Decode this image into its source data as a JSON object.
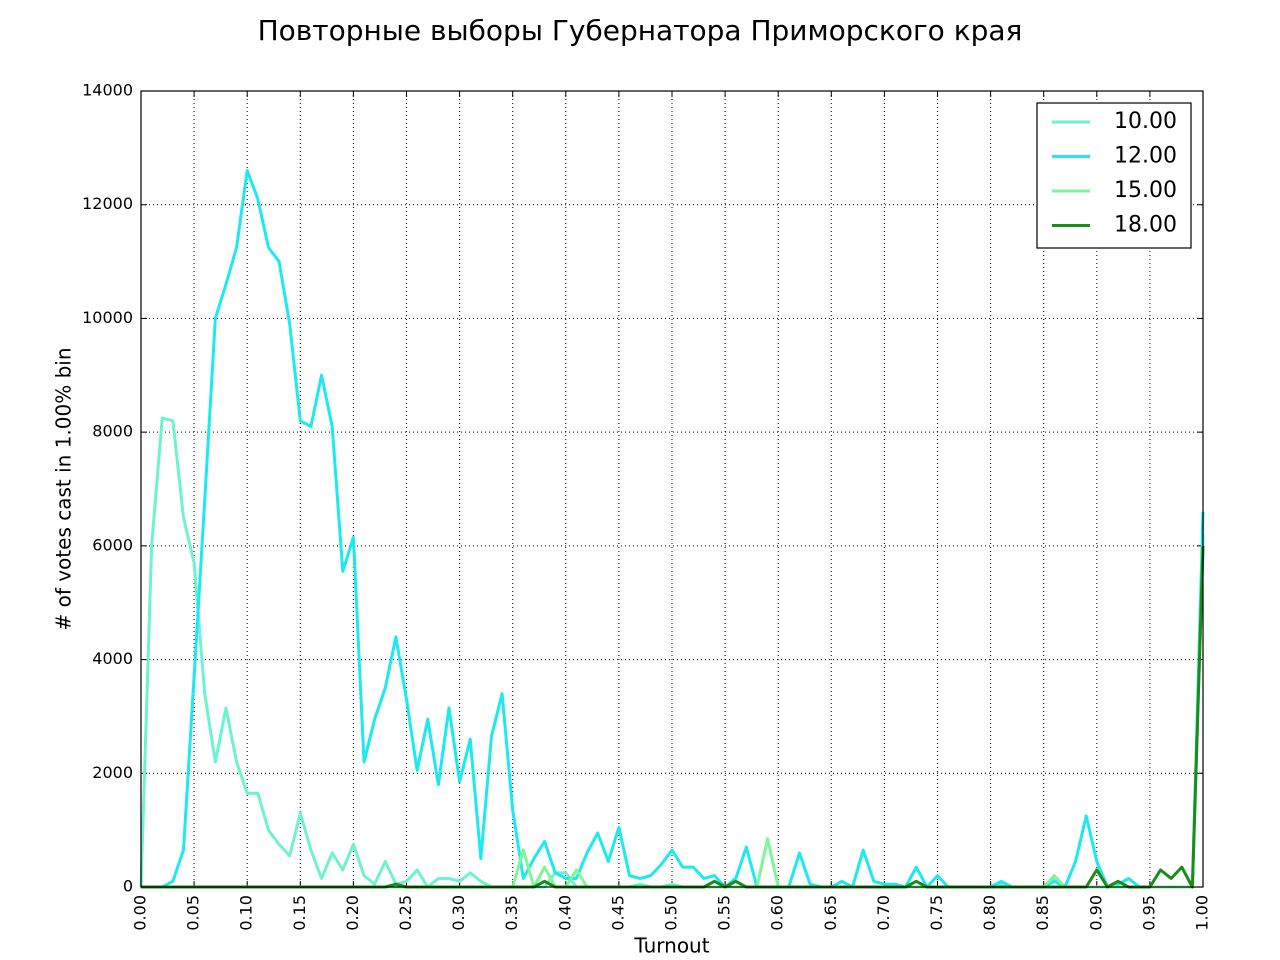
{
  "chart_data": {
    "type": "line",
    "title": "Повторные выборы Губернатора Приморского края",
    "x_label": "Turnout",
    "y_label": "# of votes cast in 1.00% bin",
    "x": [
      0,
      0.01,
      0.02,
      0.03,
      0.04,
      0.05,
      0.06,
      0.07,
      0.08,
      0.09,
      0.1,
      0.11,
      0.12,
      0.13,
      0.14,
      0.15,
      0.16,
      0.17,
      0.18,
      0.19,
      0.2,
      0.21,
      0.22,
      0.23,
      0.24,
      0.25,
      0.26,
      0.27,
      0.28,
      0.29,
      0.3,
      0.31,
      0.32,
      0.33,
      0.34,
      0.35,
      0.36,
      0.37,
      0.38,
      0.39,
      0.4,
      0.41,
      0.42,
      0.43,
      0.44,
      0.45,
      0.46,
      0.47,
      0.48,
      0.49,
      0.5,
      0.51,
      0.52,
      0.53,
      0.54,
      0.55,
      0.56,
      0.57,
      0.58,
      0.59,
      0.6,
      0.61,
      0.62,
      0.63,
      0.64,
      0.65,
      0.66,
      0.67,
      0.68,
      0.69,
      0.7,
      0.71,
      0.72,
      0.73,
      0.74,
      0.75,
      0.76,
      0.77,
      0.78,
      0.79,
      0.8,
      0.81,
      0.82,
      0.83,
      0.84,
      0.85,
      0.86,
      0.87,
      0.88,
      0.89,
      0.9,
      0.91,
      0.92,
      0.93,
      0.94,
      0.95,
      0.96,
      0.97,
      0.98,
      0.99,
      1
    ],
    "series": [
      {
        "name": "10.00",
        "color": "#6ef2cf",
        "values": [
          0,
          6000,
          8250,
          8200,
          6500,
          5700,
          3400,
          2200,
          3150,
          2200,
          1650,
          1650,
          1000,
          750,
          550,
          1300,
          650,
          150,
          600,
          300,
          750,
          200,
          50,
          450,
          50,
          100,
          300,
          0,
          150,
          150,
          100,
          250,
          100,
          0,
          0,
          0,
          0,
          0,
          0,
          250,
          250,
          0,
          0,
          0,
          0,
          0,
          0,
          50,
          0,
          0,
          50,
          0,
          0,
          0,
          0,
          0,
          0,
          0,
          0,
          0,
          0,
          0,
          0,
          0,
          0,
          0,
          0,
          0,
          0,
          0,
          0,
          0,
          0,
          0,
          0,
          0,
          0,
          0,
          0,
          0,
          0,
          50,
          0,
          0,
          0,
          0,
          150,
          0,
          0,
          0,
          0,
          0,
          0,
          0,
          0,
          0,
          0,
          0,
          0,
          0,
          6200
        ]
      },
      {
        "name": "12.00",
        "color": "#1de9f0",
        "values": [
          0,
          0,
          0,
          100,
          650,
          3700,
          6800,
          10000,
          10600,
          11250,
          12600,
          12100,
          11250,
          11000,
          9900,
          8200,
          8100,
          9000,
          8100,
          5550,
          6150,
          2200,
          2950,
          3500,
          4400,
          3300,
          2050,
          2950,
          1800,
          3150,
          1850,
          2600,
          500,
          2650,
          3400,
          1350,
          150,
          500,
          800,
          250,
          150,
          150,
          600,
          950,
          450,
          1050,
          200,
          150,
          200,
          400,
          650,
          350,
          350,
          150,
          200,
          0,
          150,
          700,
          0,
          0,
          0,
          0,
          600,
          50,
          0,
          0,
          100,
          0,
          650,
          100,
          50,
          50,
          0,
          350,
          0,
          200,
          0,
          0,
          0,
          0,
          0,
          100,
          0,
          0,
          0,
          0,
          100,
          0,
          450,
          1250,
          450,
          0,
          50,
          150,
          0,
          0,
          0,
          0,
          0,
          0,
          6600
        ]
      },
      {
        "name": "15.00",
        "color": "#80f59a",
        "values": [
          0,
          0,
          0,
          0,
          0,
          0,
          0,
          0,
          0,
          0,
          0,
          0,
          0,
          0,
          0,
          0,
          0,
          0,
          0,
          0,
          0,
          0,
          0,
          0,
          0,
          0,
          0,
          0,
          0,
          0,
          0,
          0,
          0,
          0,
          0,
          0,
          650,
          0,
          350,
          0,
          0,
          300,
          0,
          0,
          0,
          0,
          0,
          0,
          0,
          0,
          0,
          0,
          0,
          0,
          0,
          0,
          0,
          0,
          0,
          850,
          0,
          0,
          0,
          0,
          0,
          0,
          0,
          0,
          0,
          0,
          0,
          0,
          0,
          0,
          0,
          0,
          0,
          0,
          0,
          0,
          0,
          0,
          0,
          0,
          0,
          0,
          200,
          0,
          0,
          0,
          0,
          0,
          0,
          0,
          0,
          0,
          0,
          0,
          0,
          0,
          6000
        ]
      },
      {
        "name": "18.00",
        "color": "#1a8c1a",
        "values": [
          0,
          0,
          0,
          0,
          0,
          0,
          0,
          0,
          0,
          0,
          0,
          0,
          0,
          0,
          0,
          0,
          0,
          0,
          0,
          0,
          0,
          0,
          0,
          0,
          50,
          0,
          0,
          0,
          0,
          0,
          0,
          0,
          0,
          0,
          0,
          0,
          0,
          0,
          100,
          0,
          0,
          0,
          0,
          0,
          0,
          0,
          0,
          0,
          0,
          0,
          0,
          0,
          0,
          0,
          100,
          0,
          100,
          0,
          0,
          0,
          0,
          0,
          0,
          0,
          0,
          0,
          0,
          0,
          0,
          0,
          0,
          0,
          0,
          100,
          0,
          0,
          0,
          0,
          0,
          0,
          0,
          0,
          0,
          0,
          0,
          0,
          0,
          0,
          0,
          0,
          300,
          0,
          100,
          0,
          0,
          0,
          300,
          150,
          350,
          0,
          6000
        ]
      }
    ],
    "xlim": [
      0,
      1
    ],
    "ylim": [
      0,
      14000
    ],
    "xticks": [
      {
        "value": 0,
        "label": "0.00"
      },
      0.05,
      {
        "value": 0.1,
        "label": "0.10"
      },
      0.15,
      {
        "value": 0.2,
        "label": "0.20"
      },
      0.25,
      {
        "value": 0.3,
        "label": "0.30"
      },
      0.35,
      {
        "value": 0.4,
        "label": "0.40"
      },
      0.45,
      {
        "value": 0.5,
        "label": "0.50"
      },
      0.55,
      {
        "value": 0.6,
        "label": "0.60"
      },
      0.65,
      {
        "value": 0.7,
        "label": "0.70"
      },
      0.75,
      {
        "value": 0.8,
        "label": "0.80"
      },
      0.85,
      {
        "value": 0.9,
        "label": "0.90"
      },
      0.95,
      {
        "value": 1,
        "label": "1.00"
      }
    ],
    "yticks": [
      0,
      2000,
      4000,
      6000,
      8000,
      10000,
      12000,
      14000
    ],
    "grid": true,
    "legend": "upper right"
  }
}
